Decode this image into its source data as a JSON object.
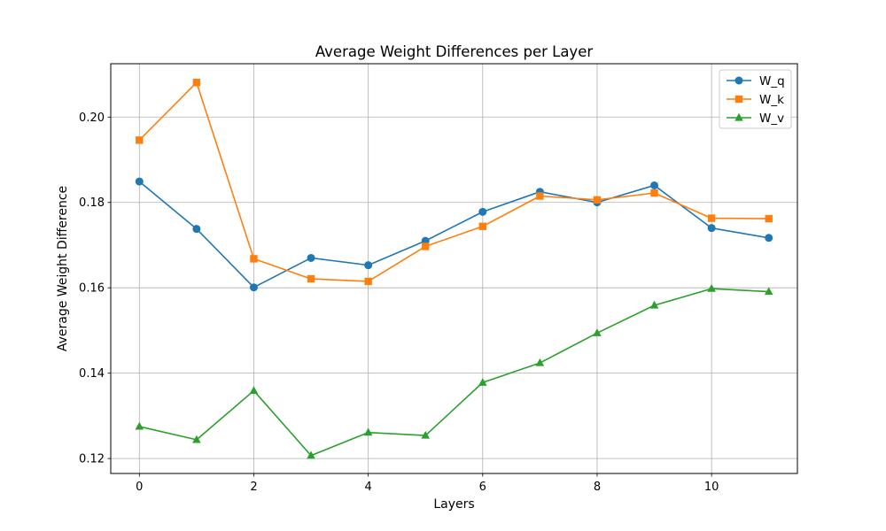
{
  "chart_data": {
    "type": "line",
    "title": "Average Weight Differences per Layer",
    "xlabel": "Layers",
    "ylabel": "Average Weight Difference",
    "x": [
      0,
      1,
      2,
      3,
      4,
      5,
      6,
      7,
      8,
      9,
      10,
      11
    ],
    "xlim": [
      -0.5,
      11.5
    ],
    "ylim": [
      0.1165,
      0.2125
    ],
    "xticks": [
      0,
      2,
      4,
      6,
      8,
      10
    ],
    "xtick_labels": [
      "0",
      "2",
      "4",
      "6",
      "8",
      "10"
    ],
    "yticks": [
      0.12,
      0.14,
      0.16,
      0.18,
      0.2
    ],
    "ytick_labels": [
      "0.12",
      "0.14",
      "0.16",
      "0.18",
      "0.20"
    ],
    "grid": true,
    "legend_position": "top-right",
    "series": [
      {
        "name": "W_q",
        "color": "#1f77b4",
        "marker": "circle",
        "values": [
          0.1849,
          0.1738,
          0.1601,
          0.167,
          0.1653,
          0.171,
          0.1778,
          0.1825,
          0.18,
          0.184,
          0.174,
          0.1717
        ]
      },
      {
        "name": "W_k",
        "color": "#ff7f0e",
        "marker": "square",
        "values": [
          0.1946,
          0.2081,
          0.1668,
          0.1621,
          0.1615,
          0.1697,
          0.1744,
          0.1815,
          0.1806,
          0.1822,
          0.1763,
          0.1762
        ]
      },
      {
        "name": "W_v",
        "color": "#2ca02c",
        "marker": "triangle",
        "values": [
          0.1275,
          0.1244,
          0.1359,
          0.1207,
          0.1261,
          0.1254,
          0.1378,
          0.1424,
          0.1494,
          0.1559,
          0.1598,
          0.1591
        ]
      }
    ]
  }
}
